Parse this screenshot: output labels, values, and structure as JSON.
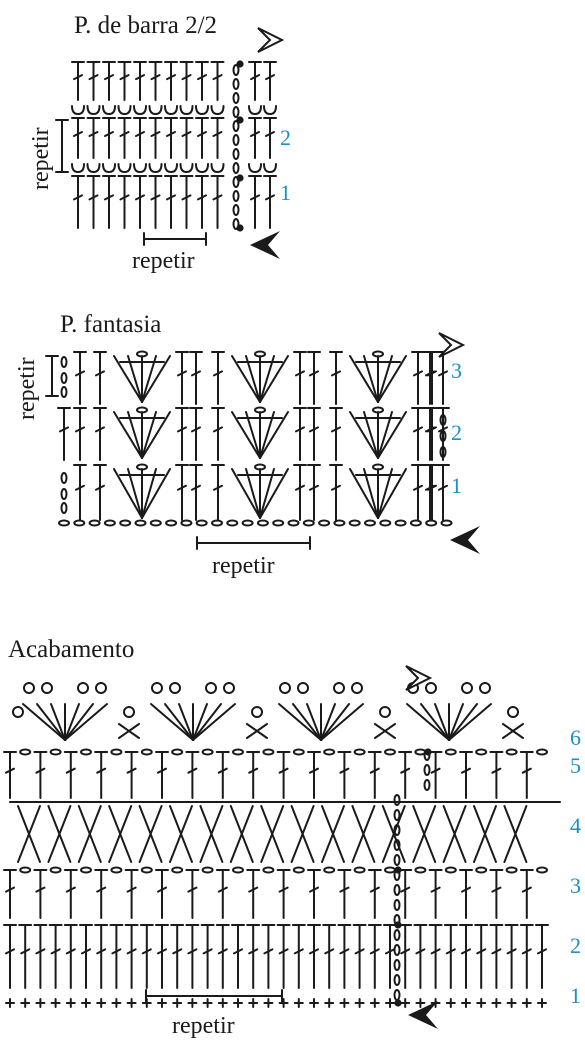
{
  "section1": {
    "title": "P. de barra 2/2",
    "repeat_vertical": "repetir",
    "repeat_horizontal": "repetir",
    "row_numbers": [
      "2",
      "1"
    ]
  },
  "section2": {
    "title": "P. fantasia",
    "repeat_vertical": "repetir",
    "repeat_horizontal": "repetir",
    "row_numbers": [
      "3",
      "2",
      "1"
    ]
  },
  "section3": {
    "title": "Acabamento",
    "repeat_horizontal": "repetir",
    "row_numbers": [
      "6",
      "5",
      "4",
      "3",
      "2",
      "1"
    ]
  },
  "colors": {
    "row_number": "#1a8fc9",
    "ink": "#1a1a1a"
  }
}
